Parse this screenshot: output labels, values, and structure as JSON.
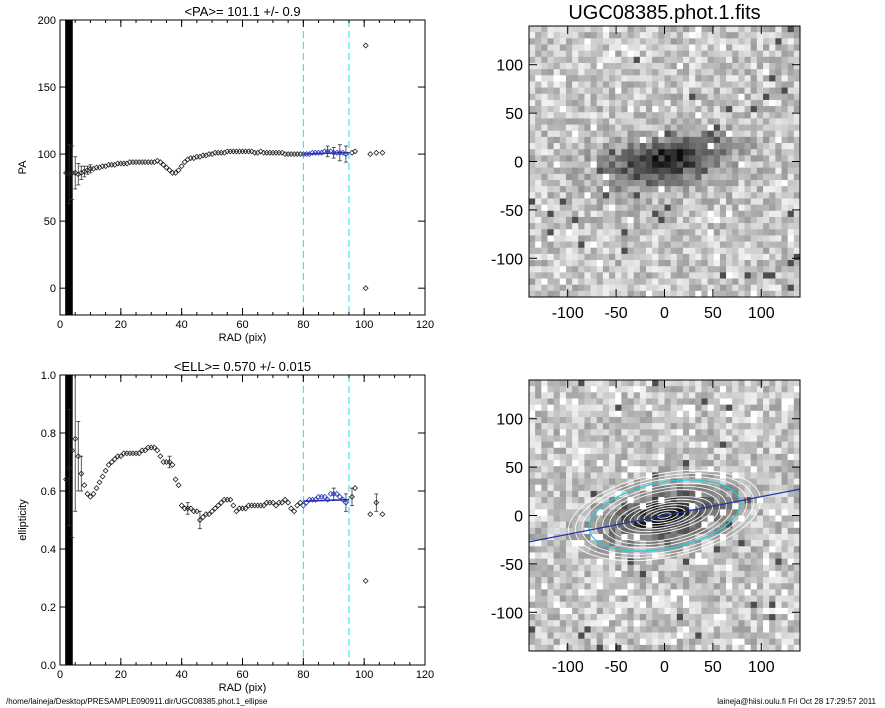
{
  "footer": {
    "left": "/home/laineja/Desktop/PRESAMPLE090911.dir/UGC08385.phot.1_ellipse",
    "right": "laineja@hiisi.oulu.fi  Fri Oct 28 17:29:57 2011"
  },
  "chart_data": [
    {
      "type": "scatter",
      "title": "<PA>= 101.1 +/-   0.9",
      "xlabel": "RAD (pix)",
      "ylabel": "PA",
      "xlim": [
        0,
        120
      ],
      "ylim": [
        -20,
        200
      ],
      "xticks": [
        "0",
        "20",
        "40",
        "60",
        "80",
        "100",
        "120"
      ],
      "yticks": [
        "0",
        "50",
        "100",
        "150",
        "200"
      ],
      "vlines": [
        80,
        95
      ],
      "outliers": [
        [
          100.5,
          181
        ],
        [
          100.5,
          0
        ]
      ],
      "mean_fit": {
        "x": [
          80,
          95
        ],
        "y": [
          100,
          101.1
        ]
      },
      "points": [
        [
          2,
          86
        ],
        [
          3,
          85
        ],
        [
          4,
          86
        ],
        [
          5,
          86
        ],
        [
          6,
          85
        ],
        [
          7,
          86
        ],
        [
          8,
          87
        ],
        [
          9,
          88
        ],
        [
          10,
          89
        ],
        [
          11,
          89
        ],
        [
          12,
          90
        ],
        [
          13,
          90
        ],
        [
          14,
          91
        ],
        [
          15,
          91
        ],
        [
          16,
          92
        ],
        [
          17,
          92
        ],
        [
          18,
          92
        ],
        [
          19,
          93
        ],
        [
          20,
          93
        ],
        [
          21,
          93
        ],
        [
          22,
          93
        ],
        [
          23,
          94
        ],
        [
          24,
          94
        ],
        [
          25,
          94
        ],
        [
          26,
          94
        ],
        [
          27,
          94
        ],
        [
          28,
          94
        ],
        [
          29,
          94
        ],
        [
          30,
          94
        ],
        [
          31,
          94
        ],
        [
          32,
          95
        ],
        [
          33,
          94
        ],
        [
          34,
          92
        ],
        [
          35,
          90
        ],
        [
          36,
          88
        ],
        [
          37,
          86
        ],
        [
          38,
          86
        ],
        [
          39,
          88
        ],
        [
          40,
          91
        ],
        [
          41,
          94
        ],
        [
          42,
          96
        ],
        [
          43,
          97
        ],
        [
          44,
          97
        ],
        [
          45,
          98
        ],
        [
          46,
          98
        ],
        [
          47,
          99
        ],
        [
          48,
          99
        ],
        [
          49,
          100
        ],
        [
          50,
          100
        ],
        [
          51,
          101
        ],
        [
          52,
          101
        ],
        [
          53,
          101
        ],
        [
          54,
          101
        ],
        [
          55,
          102
        ],
        [
          56,
          102
        ],
        [
          57,
          102
        ],
        [
          58,
          102
        ],
        [
          59,
          102
        ],
        [
          60,
          102
        ],
        [
          61,
          102
        ],
        [
          62,
          102
        ],
        [
          63,
          102
        ],
        [
          64,
          101
        ],
        [
          65,
          101
        ],
        [
          66,
          102
        ],
        [
          67,
          101
        ],
        [
          68,
          101
        ],
        [
          69,
          101
        ],
        [
          70,
          101
        ],
        [
          71,
          101
        ],
        [
          72,
          101
        ],
        [
          73,
          101
        ],
        [
          74,
          100
        ],
        [
          75,
          100
        ],
        [
          76,
          100
        ],
        [
          77,
          100
        ],
        [
          78,
          100
        ],
        [
          79,
          100
        ],
        [
          80,
          100
        ],
        [
          81,
          100
        ],
        [
          82,
          100
        ],
        [
          83,
          101
        ],
        [
          84,
          101
        ],
        [
          85,
          101
        ],
        [
          86,
          101
        ],
        [
          87,
          102
        ],
        [
          88,
          102
        ],
        [
          89,
          102
        ],
        [
          90,
          101
        ],
        [
          91,
          101
        ],
        [
          92,
          101
        ],
        [
          93,
          101
        ],
        [
          94,
          100
        ],
        [
          96,
          101
        ],
        [
          97,
          102
        ],
        [
          102,
          100
        ],
        [
          104,
          101
        ],
        [
          106,
          101
        ]
      ],
      "errors": [
        [
          3,
          22
        ],
        [
          4,
          20
        ],
        [
          5,
          12
        ],
        [
          6,
          8
        ],
        [
          7,
          5
        ],
        [
          8,
          4
        ],
        [
          9,
          3
        ],
        [
          10,
          3
        ],
        [
          88,
          4
        ],
        [
          90,
          4
        ],
        [
          92,
          6
        ],
        [
          94,
          6
        ]
      ]
    },
    {
      "type": "scatter",
      "title": "<ELL>= 0.570 +/-  0.015",
      "xlabel": "RAD (pix)",
      "ylabel": "ellipticity",
      "xlim": [
        0,
        120
      ],
      "ylim": [
        0.0,
        1.0
      ],
      "xticks": [
        "0",
        "20",
        "40",
        "60",
        "80",
        "100",
        "120"
      ],
      "yticks": [
        "0.0",
        "0.2",
        "0.4",
        "0.6",
        "0.8",
        "1.0"
      ],
      "vlines": [
        80,
        95
      ],
      "outliers": [
        [
          100.5,
          0.29
        ]
      ],
      "mean_fit": {
        "x": [
          80,
          95
        ],
        "y": [
          0.565,
          0.57
        ]
      },
      "points": [
        [
          2,
          0.64
        ],
        [
          3,
          0.68
        ],
        [
          4,
          0.74
        ],
        [
          5,
          0.78
        ],
        [
          6,
          0.72
        ],
        [
          7,
          0.66
        ],
        [
          8,
          0.62
        ],
        [
          9,
          0.59
        ],
        [
          10,
          0.58
        ],
        [
          11,
          0.59
        ],
        [
          12,
          0.61
        ],
        [
          13,
          0.63
        ],
        [
          14,
          0.65
        ],
        [
          15,
          0.67
        ],
        [
          16,
          0.69
        ],
        [
          17,
          0.7
        ],
        [
          18,
          0.71
        ],
        [
          19,
          0.72
        ],
        [
          20,
          0.72
        ],
        [
          21,
          0.73
        ],
        [
          22,
          0.73
        ],
        [
          23,
          0.73
        ],
        [
          24,
          0.73
        ],
        [
          25,
          0.73
        ],
        [
          26,
          0.73
        ],
        [
          27,
          0.74
        ],
        [
          28,
          0.74
        ],
        [
          29,
          0.75
        ],
        [
          30,
          0.75
        ],
        [
          31,
          0.75
        ],
        [
          32,
          0.74
        ],
        [
          33,
          0.72
        ],
        [
          34,
          0.7
        ],
        [
          35,
          0.7
        ],
        [
          36,
          0.7
        ],
        [
          37,
          0.69
        ],
        [
          38,
          0.64
        ],
        [
          39,
          0.62
        ],
        [
          40,
          0.55
        ],
        [
          41,
          0.54
        ],
        [
          42,
          0.54
        ],
        [
          43,
          0.54
        ],
        [
          44,
          0.53
        ],
        [
          45,
          0.53
        ],
        [
          46,
          0.5
        ],
        [
          47,
          0.51
        ],
        [
          48,
          0.52
        ],
        [
          49,
          0.52
        ],
        [
          50,
          0.53
        ],
        [
          51,
          0.54
        ],
        [
          52,
          0.55
        ],
        [
          53,
          0.56
        ],
        [
          54,
          0.57
        ],
        [
          55,
          0.57
        ],
        [
          56,
          0.57
        ],
        [
          57,
          0.55
        ],
        [
          58,
          0.53
        ],
        [
          59,
          0.54
        ],
        [
          60,
          0.54
        ],
        [
          61,
          0.54
        ],
        [
          62,
          0.55
        ],
        [
          63,
          0.55
        ],
        [
          64,
          0.55
        ],
        [
          65,
          0.55
        ],
        [
          66,
          0.55
        ],
        [
          67,
          0.55
        ],
        [
          68,
          0.56
        ],
        [
          69,
          0.56
        ],
        [
          70,
          0.56
        ],
        [
          71,
          0.55
        ],
        [
          72,
          0.56
        ],
        [
          73,
          0.56
        ],
        [
          74,
          0.57
        ],
        [
          75,
          0.56
        ],
        [
          76,
          0.54
        ],
        [
          77,
          0.53
        ],
        [
          78,
          0.55
        ],
        [
          79,
          0.56
        ],
        [
          80,
          0.55
        ],
        [
          81,
          0.56
        ],
        [
          82,
          0.57
        ],
        [
          83,
          0.57
        ],
        [
          84,
          0.57
        ],
        [
          85,
          0.58
        ],
        [
          86,
          0.58
        ],
        [
          87,
          0.58
        ],
        [
          88,
          0.57
        ],
        [
          89,
          0.59
        ],
        [
          90,
          0.59
        ],
        [
          91,
          0.59
        ],
        [
          92,
          0.58
        ],
        [
          93,
          0.57
        ],
        [
          94,
          0.56
        ],
        [
          96,
          0.58
        ],
        [
          97,
          0.61
        ],
        [
          102,
          0.52
        ],
        [
          104,
          0.56
        ],
        [
          106,
          0.52
        ]
      ],
      "errors": [
        [
          3,
          0.2
        ],
        [
          4,
          0.3
        ],
        [
          5,
          0.25
        ],
        [
          6,
          0.12
        ],
        [
          7,
          0.06
        ],
        [
          36,
          0.02
        ],
        [
          42,
          0.02
        ],
        [
          46,
          0.03
        ],
        [
          90,
          0.02
        ],
        [
          94,
          0.03
        ],
        [
          96,
          0.03
        ],
        [
          104,
          0.03
        ]
      ]
    },
    {
      "type": "heatmap",
      "title": "UGC08385.phot.1.fits",
      "xlim": [
        -140,
        140
      ],
      "ylim": [
        -140,
        140
      ],
      "xticks": [
        "-100",
        "-50",
        "0",
        "50",
        "100"
      ],
      "yticks": [
        "-100",
        "-50",
        "0",
        "50",
        "100"
      ],
      "colormap": "grayscale",
      "galaxy": {
        "center": [
          0,
          0
        ],
        "semi_major": 80,
        "ellipticity": 0.57,
        "pa": 101
      }
    },
    {
      "type": "heatmap",
      "title": "",
      "xlim": [
        -140,
        140
      ],
      "ylim": [
        -140,
        140
      ],
      "xticks": [
        "-100",
        "-50",
        "0",
        "50",
        "100"
      ],
      "yticks": [
        "-100",
        "-50",
        "0",
        "50",
        "100"
      ],
      "colormap": "grayscale",
      "overlay": {
        "isophote_count": 14,
        "pa_line": 101,
        "accent": "#2233aa",
        "highlight": "#22ccdd"
      }
    }
  ],
  "colors": {
    "dashed": "#22dde6",
    "fit": "#2a33b8",
    "ink": "#000000"
  }
}
